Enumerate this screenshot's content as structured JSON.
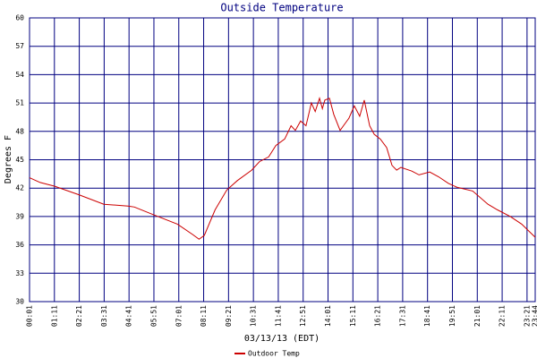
{
  "chart_data": {
    "type": "line",
    "title": "Outside Temperature",
    "y_label": "Degrees F",
    "x_label": "03/13/13 (EDT)",
    "x": [
      1,
      31,
      72,
      140,
      210,
      278,
      296,
      349,
      417,
      460,
      478,
      493,
      523,
      556,
      586,
      626,
      648,
      674,
      694,
      719,
      737,
      749,
      764,
      779,
      794,
      805,
      817,
      825,
      832,
      845,
      857,
      875,
      900,
      915,
      930,
      943,
      958,
      971,
      988,
      1006,
      1021,
      1034,
      1046,
      1077,
      1097,
      1127,
      1152,
      1180,
      1203,
      1248,
      1291,
      1318,
      1354,
      1386,
      1424
    ],
    "series": [
      {
        "name": "Outdoor Temp",
        "color": "#cc0000",
        "values": [
          43.1,
          42.6,
          42.2,
          41.3,
          40.3,
          40.1,
          40.0,
          39.2,
          38.2,
          37.1,
          36.6,
          37.0,
          39.7,
          41.8,
          42.8,
          43.9,
          44.8,
          45.3,
          46.5,
          47.2,
          48.6,
          48.1,
          49.1,
          48.6,
          51.0,
          50.1,
          51.5,
          50.4,
          51.3,
          51.5,
          49.8,
          48.1,
          49.4,
          50.7,
          49.6,
          51.3,
          48.6,
          47.7,
          47.2,
          46.3,
          44.4,
          43.9,
          44.2,
          43.8,
          43.4,
          43.7,
          43.2,
          42.5,
          42.1,
          41.7,
          40.3,
          39.7,
          39.0,
          38.2,
          36.8
        ]
      }
    ],
    "xlim": [
      1,
      1424
    ],
    "xticks": [
      {
        "value": 1,
        "label": "00:01"
      },
      {
        "value": 71,
        "label": "01:11"
      },
      {
        "value": 141,
        "label": "02:21"
      },
      {
        "value": 211,
        "label": "03:31"
      },
      {
        "value": 281,
        "label": "04:41"
      },
      {
        "value": 351,
        "label": "05:51"
      },
      {
        "value": 421,
        "label": "07:01"
      },
      {
        "value": 491,
        "label": "08:11"
      },
      {
        "value": 561,
        "label": "09:21"
      },
      {
        "value": 631,
        "label": "10:31"
      },
      {
        "value": 701,
        "label": "11:41"
      },
      {
        "value": 771,
        "label": "12:51"
      },
      {
        "value": 841,
        "label": "14:01"
      },
      {
        "value": 911,
        "label": "15:11"
      },
      {
        "value": 981,
        "label": "16:21"
      },
      {
        "value": 1051,
        "label": "17:31"
      },
      {
        "value": 1121,
        "label": "18:41"
      },
      {
        "value": 1191,
        "label": "19:51"
      },
      {
        "value": 1261,
        "label": "21:01"
      },
      {
        "value": 1331,
        "label": "22:11"
      },
      {
        "value": 1401,
        "label": "23:21"
      },
      {
        "value": 1424,
        "label": "23:44"
      }
    ],
    "ylim": [
      30,
      60
    ],
    "yticks": [
      30,
      33,
      36,
      39,
      42,
      45,
      48,
      51,
      54,
      57,
      60
    ],
    "grid": true
  }
}
